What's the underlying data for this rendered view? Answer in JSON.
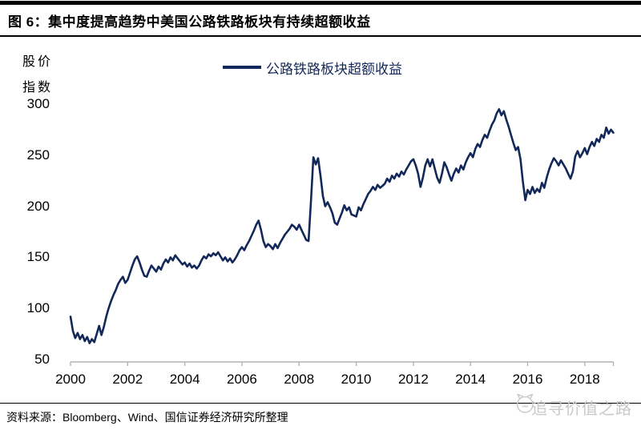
{
  "header": {
    "title": "图 6：集中度提高趋势中美国公路铁路板块有持续超额收益"
  },
  "y_axis_unit_line1": "股价",
  "y_axis_unit_line2": "指数",
  "legend": {
    "label": "公路铁路板块超额收益"
  },
  "footer": {
    "source": "资料来源：Bloomberg、Wind、国信证券经济研究所整理",
    "watermark": "追寻价值之路"
  },
  "colors": {
    "line": "#13285a",
    "legend_text": "#13285a",
    "axis": "#b3b3b3",
    "text": "#000000",
    "watermark": "#c9c9c9",
    "rule": "#000000"
  },
  "chart_data": {
    "type": "line",
    "title": "集中度提高趋势中美国公路铁路板块有持续超额收益",
    "ylabel": "股价指数",
    "xlabel": "",
    "ylim": [
      50,
      300
    ],
    "y_ticks": [
      50,
      100,
      150,
      200,
      250,
      300
    ],
    "x_ticks": [
      2000,
      2002,
      2004,
      2006,
      2008,
      2010,
      2012,
      2014,
      2016,
      2018
    ],
    "x_start_year": 2000,
    "x_interval": "monthly",
    "grid": false,
    "legend_position": "top-center",
    "series": [
      {
        "name": "公路铁路板块超额收益",
        "values": [
          92,
          78,
          71,
          76,
          70,
          74,
          68,
          72,
          66,
          70,
          67,
          75,
          83,
          74,
          82,
          92,
          100,
          107,
          113,
          118,
          124,
          128,
          131,
          125,
          128,
          135,
          142,
          148,
          151,
          145,
          138,
          132,
          131,
          137,
          142,
          139,
          136,
          141,
          138,
          144,
          148,
          145,
          150,
          147,
          152,
          149,
          146,
          143,
          145,
          141,
          144,
          140,
          142,
          139,
          142,
          147,
          151,
          149,
          153,
          151,
          154,
          152,
          155,
          151,
          147,
          150,
          146,
          149,
          145,
          148,
          152,
          157,
          160,
          157,
          162,
          166,
          171,
          176,
          182,
          186,
          177,
          166,
          160,
          163,
          161,
          158,
          163,
          159,
          164,
          168,
          172,
          175,
          178,
          182,
          180,
          177,
          182,
          177,
          172,
          167,
          166,
          205,
          248,
          241,
          247,
          230,
          210,
          200,
          204,
          199,
          193,
          184,
          182,
          188,
          194,
          201,
          196,
          199,
          192,
          191,
          190,
          199,
          196,
          202,
          207,
          212,
          215,
          219,
          216,
          221,
          218,
          220,
          222,
          227,
          224,
          230,
          227,
          232,
          229,
          234,
          231,
          236,
          240,
          244,
          246,
          240,
          232,
          219,
          228,
          240,
          246,
          239,
          246,
          237,
          228,
          223,
          232,
          243,
          238,
          231,
          225,
          232,
          237,
          233,
          240,
          236,
          243,
          248,
          252,
          248,
          256,
          261,
          258,
          265,
          270,
          267,
          274,
          280,
          284,
          291,
          295,
          289,
          293,
          285,
          278,
          270,
          262,
          255,
          258,
          246,
          224,
          206,
          216,
          212,
          219,
          213,
          217,
          214,
          223,
          218,
          228,
          236,
          242,
          247,
          244,
          240,
          245,
          241,
          237,
          232,
          227,
          234,
          249,
          254,
          248,
          252,
          257,
          251,
          258,
          263,
          259,
          266,
          263,
          270,
          267,
          277,
          271,
          275,
          272
        ]
      }
    ]
  }
}
